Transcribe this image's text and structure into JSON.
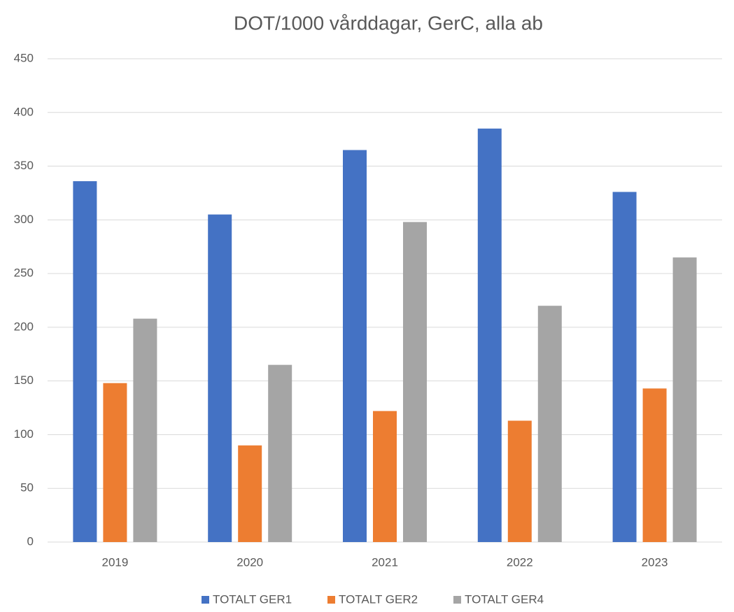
{
  "chart_data": {
    "type": "bar",
    "title": "DOT/1000 vårddagar, GerC, alla ab",
    "categories": [
      "2019",
      "2020",
      "2021",
      "2022",
      "2023"
    ],
    "series": [
      {
        "name": "TOTALT GER1",
        "color": "#4472c4",
        "values": [
          336,
          305,
          365,
          385,
          326
        ]
      },
      {
        "name": "TOTALT GER2",
        "color": "#ed7d31",
        "values": [
          148,
          90,
          122,
          113,
          143
        ]
      },
      {
        "name": "TOTALT GER4",
        "color": "#a5a5a5",
        "values": [
          208,
          165,
          298,
          220,
          265
        ]
      }
    ],
    "ylim": [
      0,
      450
    ],
    "yticks": [
      0,
      50,
      100,
      150,
      200,
      250,
      300,
      350,
      400,
      450
    ],
    "grid": true,
    "legend": "bottom"
  }
}
